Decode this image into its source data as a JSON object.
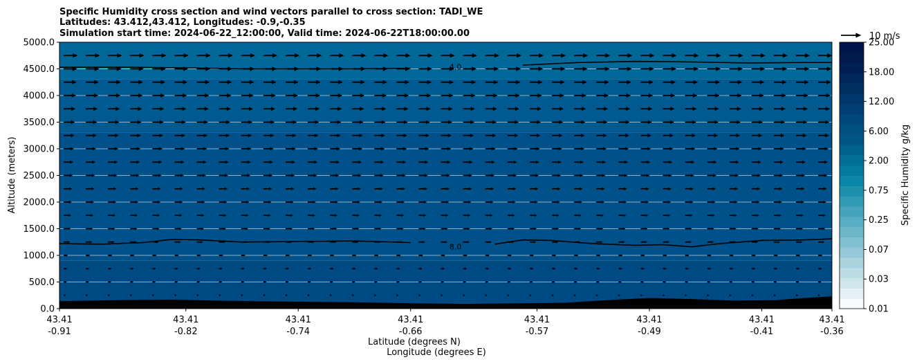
{
  "chart_data": {
    "type": "heatmap",
    "title_lines": [
      "Specific Humidity cross section and wind vectors parallel to cross section: TADI_WE",
      "Latitudes: 43.412,43.412, Longitudes: -0.9,-0.35",
      "Simulation start time: 2024-06-22_12:00:00, Valid time: 2024-06-22T18:00:00.00"
    ],
    "xlabel_lines": [
      "Latitude (degrees N)",
      "Longitude (degrees E)"
    ],
    "ylabel": "Altitude (meters)",
    "ylim": [
      0,
      5000
    ],
    "y_ticks": [
      "0.0",
      "500.0",
      "1000.0",
      "1500.0",
      "2000.0",
      "2500.0",
      "3000.0",
      "3500.0",
      "4000.0",
      "4500.0",
      "5000.0"
    ],
    "x_ticks": [
      {
        "lat": "43.41",
        "lon": "-0.91"
      },
      {
        "lat": "43.41",
        "lon": "-0.82"
      },
      {
        "lat": "43.41",
        "lon": "-0.74"
      },
      {
        "lat": "43.41",
        "lon": "-0.66"
      },
      {
        "lat": "43.41",
        "lon": "-0.57"
      },
      {
        "lat": "43.41",
        "lon": "-0.49"
      },
      {
        "lat": "43.41",
        "lon": "-0.41"
      },
      {
        "lat": "43.41",
        "lon": "-0.36"
      }
    ],
    "x_tick_lon_values": [
      -0.91,
      -0.82,
      -0.74,
      -0.66,
      -0.57,
      -0.49,
      -0.41,
      -0.36
    ],
    "lon_range": [
      -0.91,
      -0.36
    ],
    "colorbar": {
      "label": "Specific Humidity g/kg",
      "tick_labels": [
        "0.01",
        "0.03",
        "0.07",
        "0.25",
        "0.75",
        "2.00",
        "6.00",
        "12.00",
        "18.00",
        "25.00"
      ],
      "colors": [
        "#f7fbff",
        "#e4f0f4",
        "#d0e6ed",
        "#bddde6",
        "#a9d3df",
        "#95c9d8",
        "#81c0d1",
        "#6db6ca",
        "#59adc3",
        "#45a3bc",
        "#319ab5",
        "#1d90ae",
        "#0a87a7",
        "#047b9f",
        "#026f96",
        "#01638d",
        "#005786",
        "#004f81",
        "#00477a",
        "#003f73",
        "#00376b",
        "#002f63",
        "#00275b",
        "#001f53",
        "#001a4c",
        "#00164a"
      ]
    },
    "background_bands": [
      {
        "alt_range": [
          0,
          900
        ],
        "color": "#004a84"
      },
      {
        "alt_range": [
          900,
          3300
        ],
        "color": "#005189"
      },
      {
        "alt_range": [
          3300,
          4300
        ],
        "color": "#005a90"
      },
      {
        "alt_range": [
          4300,
          5000
        ],
        "color": "#006798"
      }
    ],
    "contours": [
      {
        "label": "8.0",
        "label_lon": -0.63,
        "points": [
          [
            -0.91,
            1220
          ],
          [
            -0.88,
            1210
          ],
          [
            -0.85,
            1240
          ],
          [
            -0.83,
            1300
          ],
          [
            -0.81,
            1290
          ],
          [
            -0.78,
            1250
          ],
          [
            -0.74,
            1260
          ],
          [
            -0.7,
            1270
          ],
          [
            -0.66,
            1240
          ],
          [
            -0.64,
            1170
          ],
          [
            -0.62,
            1160
          ],
          [
            -0.6,
            1210
          ],
          [
            -0.58,
            1290
          ],
          [
            -0.56,
            1280
          ],
          [
            -0.53,
            1220
          ],
          [
            -0.5,
            1190
          ],
          [
            -0.48,
            1200
          ],
          [
            -0.46,
            1160
          ],
          [
            -0.44,
            1220
          ],
          [
            -0.41,
            1280
          ],
          [
            -0.38,
            1290
          ],
          [
            -0.36,
            1310
          ]
        ]
      },
      {
        "label": "4.0",
        "label_lon": -0.63,
        "points": [
          [
            -0.91,
            4530
          ],
          [
            -0.86,
            4530
          ],
          [
            -0.82,
            4520
          ],
          [
            -0.78,
            4500
          ],
          [
            -0.74,
            4500
          ],
          [
            -0.7,
            4500
          ],
          [
            -0.66,
            4510
          ],
          [
            -0.62,
            4550
          ],
          [
            -0.58,
            4570
          ],
          [
            -0.54,
            4620
          ],
          [
            -0.5,
            4640
          ],
          [
            -0.46,
            4630
          ],
          [
            -0.42,
            4610
          ],
          [
            -0.38,
            4620
          ],
          [
            -0.36,
            4620
          ]
        ]
      }
    ],
    "terrain": {
      "color": "#000000",
      "points": [
        [
          -0.91,
          140
        ],
        [
          -0.87,
          160
        ],
        [
          -0.83,
          170
        ],
        [
          -0.8,
          150
        ],
        [
          -0.77,
          140
        ],
        [
          -0.74,
          130
        ],
        [
          -0.7,
          120
        ],
        [
          -0.66,
          100
        ],
        [
          -0.62,
          90
        ],
        [
          -0.58,
          100
        ],
        [
          -0.55,
          110
        ],
        [
          -0.52,
          160
        ],
        [
          -0.49,
          200
        ],
        [
          -0.46,
          180
        ],
        [
          -0.43,
          150
        ],
        [
          -0.4,
          160
        ],
        [
          -0.38,
          200
        ],
        [
          -0.36,
          230
        ]
      ]
    },
    "wind_vectors": {
      "color": "#000000",
      "altitudes": [
        250,
        500,
        750,
        1000,
        1250,
        1500,
        1750,
        2000,
        2250,
        2500,
        2750,
        3000,
        3250,
        3500,
        3750,
        4000,
        4250,
        4500,
        4750
      ],
      "speeds_ms": [
        2,
        3,
        3.5,
        4,
        6,
        6.5,
        7,
        7.5,
        8,
        8.5,
        9,
        9.5,
        10,
        10.5,
        11,
        11.5,
        12,
        12.5,
        13
      ],
      "lon_spacing": 0.0158
    },
    "quiver_key": {
      "label": "10 m/s",
      "speed_ms": 10
    },
    "grid": {
      "horizontal": true,
      "color": "#ffffff"
    }
  }
}
